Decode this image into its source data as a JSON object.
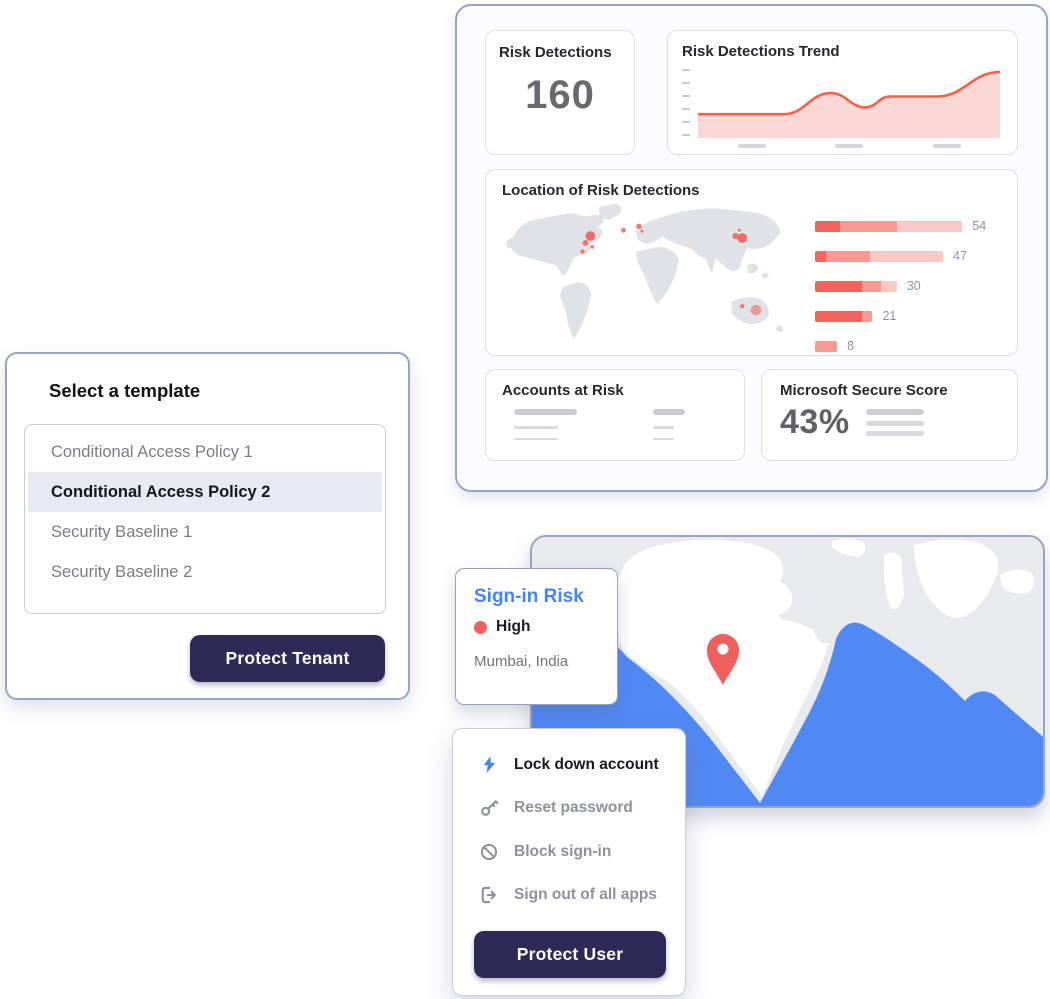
{
  "dashboard": {
    "risk_detections": {
      "title": "Risk Detections",
      "value": "160"
    },
    "trend": {
      "title": "Risk Detections Trend"
    },
    "location": {
      "title": "Location of Risk Detections"
    },
    "accounts_at_risk": {
      "title": "Accounts at Risk"
    },
    "secure_score": {
      "title": "Microsoft Secure Score",
      "value": "43%"
    }
  },
  "template_picker": {
    "heading": "Select a template",
    "items": [
      {
        "label": "Conditional Access Policy 1",
        "selected": false
      },
      {
        "label": "Conditional Access Policy 2",
        "selected": true
      },
      {
        "label": "Security Baseline 1",
        "selected": false
      },
      {
        "label": "Security Baseline 2",
        "selected": false
      }
    ],
    "button_label": "Protect Tenant"
  },
  "signin_risk_popup": {
    "title": "Sign-in Risk",
    "level": "High",
    "location": "Mumbai, India"
  },
  "user_actions_menu": {
    "items": [
      {
        "icon": "lightning-icon",
        "label": "Lock down account",
        "emphasis": true
      },
      {
        "icon": "key-icon",
        "label": "Reset password",
        "emphasis": false
      },
      {
        "icon": "block-icon",
        "label": "Block sign-in",
        "emphasis": false
      },
      {
        "icon": "sign-out-icon",
        "label": "Sign out of all apps",
        "emphasis": false
      }
    ],
    "button_label": "Protect User"
  },
  "colors": {
    "accent_navy": "#2d2a56",
    "accent_blue": "#4285f4",
    "risk_red": "#f3604c",
    "risk_fill": "#fcd4cf",
    "ocean_blue": "#5189f4",
    "bar_dark": "#f4635c",
    "bar_medium": "#f79a93",
    "bar_light": "#fbc9c5"
  },
  "map_markers": {
    "world_dots": [
      {
        "x": 87,
        "y": 36,
        "r": 5.0,
        "o": 0.9
      },
      {
        "x": 82,
        "y": 43,
        "r": 3.0,
        "o": 0.85
      },
      {
        "x": 79,
        "y": 52,
        "r": 2.2,
        "o": 0.8
      },
      {
        "x": 89,
        "y": 47,
        "r": 2.0,
        "o": 0.8
      },
      {
        "x": 121,
        "y": 30,
        "r": 2.5,
        "o": 0.85
      },
      {
        "x": 137,
        "y": 26,
        "r": 2.8,
        "o": 0.85
      },
      {
        "x": 140,
        "y": 31,
        "r": 1.6,
        "o": 0.8
      },
      {
        "x": 243,
        "y": 38,
        "r": 5.0,
        "o": 0.9
      },
      {
        "x": 236,
        "y": 36,
        "r": 3.2,
        "o": 0.85
      },
      {
        "x": 240,
        "y": 30,
        "r": 1.6,
        "o": 0.8
      },
      {
        "x": 257,
        "y": 112,
        "r": 5.5,
        "o": 0.55
      },
      {
        "x": 243,
        "y": 108,
        "r": 2.2,
        "o": 0.8
      }
    ],
    "pin_city": "Mumbai, India"
  },
  "chart_data": [
    {
      "type": "area",
      "title": "Risk Detections Trend",
      "points": [
        [
          0,
          3.5
        ],
        [
          0.285,
          3.5
        ],
        [
          0.44,
          6.6
        ],
        [
          0.555,
          4.5
        ],
        [
          0.635,
          6.1
        ],
        [
          0.79,
          6.1
        ],
        [
          1,
          9.7
        ]
      ],
      "ylim": [
        0,
        10
      ],
      "xlabel": "",
      "ylabel": "",
      "notes": "6 unlabeled y-axis ticks; 3 skeleton placeholders on x-axis"
    },
    {
      "type": "bar",
      "title": "Location of Risk Detections",
      "categories": [
        "",
        "",
        "",
        "",
        ""
      ],
      "values": [
        54,
        47,
        30,
        21,
        8
      ],
      "series": [
        {
          "name": "severity-high",
          "values": [
            9,
            4,
            17,
            17,
            0
          ]
        },
        {
          "name": "severity-medium",
          "values": [
            21,
            16,
            7,
            4,
            8
          ]
        },
        {
          "name": "severity-low",
          "values": [
            24,
            27,
            6,
            0,
            0
          ]
        }
      ],
      "legend": "none",
      "orientation": "horizontal"
    }
  ]
}
